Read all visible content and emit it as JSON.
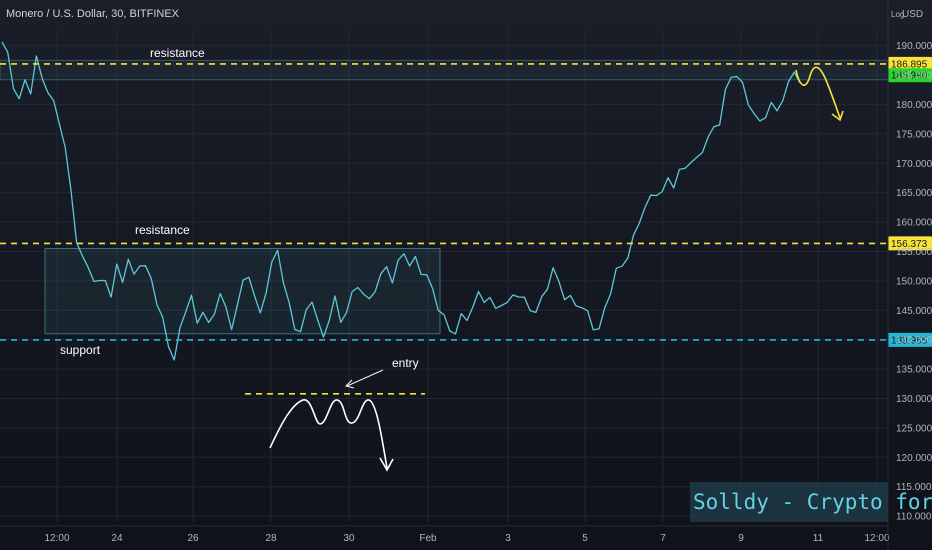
{
  "header": {
    "symbol_title": "Monero / U.S. Dollar, 30, BITFINEX",
    "currency": "USD",
    "scale_mode": "Log"
  },
  "watermark": "Solldy - Crypto for U",
  "colors": {
    "background": "#131722",
    "price_line": "#5ec7d9",
    "resistance_line": "#f7e43b",
    "support_line": "#22b8d6",
    "arrow_yellow": "#f7e43b",
    "range_box": "#5ec7d9",
    "current_price_tag": "#26d62a"
  },
  "annotations": {
    "resistance_top": "resistance",
    "resistance_mid": "resistance",
    "support": "support",
    "entry": "entry"
  },
  "chart_data": {
    "type": "line",
    "x_tick_labels": [
      "12:00",
      "24",
      "26",
      "28",
      "30",
      "Feb",
      "3",
      "5",
      "7",
      "9",
      "11",
      "12:00"
    ],
    "y_ticks": [
      110,
      115,
      120,
      125,
      130,
      135,
      140,
      145,
      150,
      155,
      160,
      165,
      170,
      175,
      180,
      185,
      190
    ],
    "ylim": [
      109,
      193
    ],
    "x_points": 140,
    "series": [
      {
        "values": [
          190,
          188,
          184,
          181,
          184,
          182,
          187,
          185,
          183,
          180,
          177,
          172,
          165,
          158,
          154,
          152,
          150,
          149,
          151,
          148,
          152,
          150,
          153,
          151,
          154,
          152,
          150,
          146,
          143,
          140,
          137,
          141,
          145,
          147,
          143,
          146,
          142,
          144,
          148,
          145,
          143,
          146,
          149,
          151,
          147,
          145,
          149,
          152,
          155,
          150,
          146,
          143,
          141,
          144,
          147,
          143,
          141,
          144,
          146,
          143,
          145,
          148,
          150,
          147,
          146,
          149,
          151,
          153,
          150,
          152,
          155,
          153,
          154,
          152,
          150,
          148,
          146,
          144,
          142,
          141,
          143,
          144,
          146,
          148,
          147,
          146,
          145,
          147,
          146,
          148,
          147,
          146,
          146,
          145,
          147,
          149,
          151,
          150,
          148,
          147,
          146,
          145,
          144,
          143,
          142,
          145,
          148,
          151,
          153,
          155,
          157,
          160,
          162,
          164,
          166,
          165,
          167,
          166,
          168,
          170,
          171,
          170,
          172,
          174,
          176,
          178,
          182,
          184,
          185,
          183,
          181,
          179,
          176,
          178,
          180,
          179,
          182,
          183,
          185,
          184
        ]
      }
    ],
    "levels": [
      {
        "label": "186.895",
        "value": 186.895
      },
      {
        "label": "156.373",
        "value": 156.373
      },
      {
        "label": "139.965",
        "value": 139.965
      }
    ],
    "current_price": {
      "label": "185.990",
      "value": 185.99
    },
    "grid": true
  }
}
